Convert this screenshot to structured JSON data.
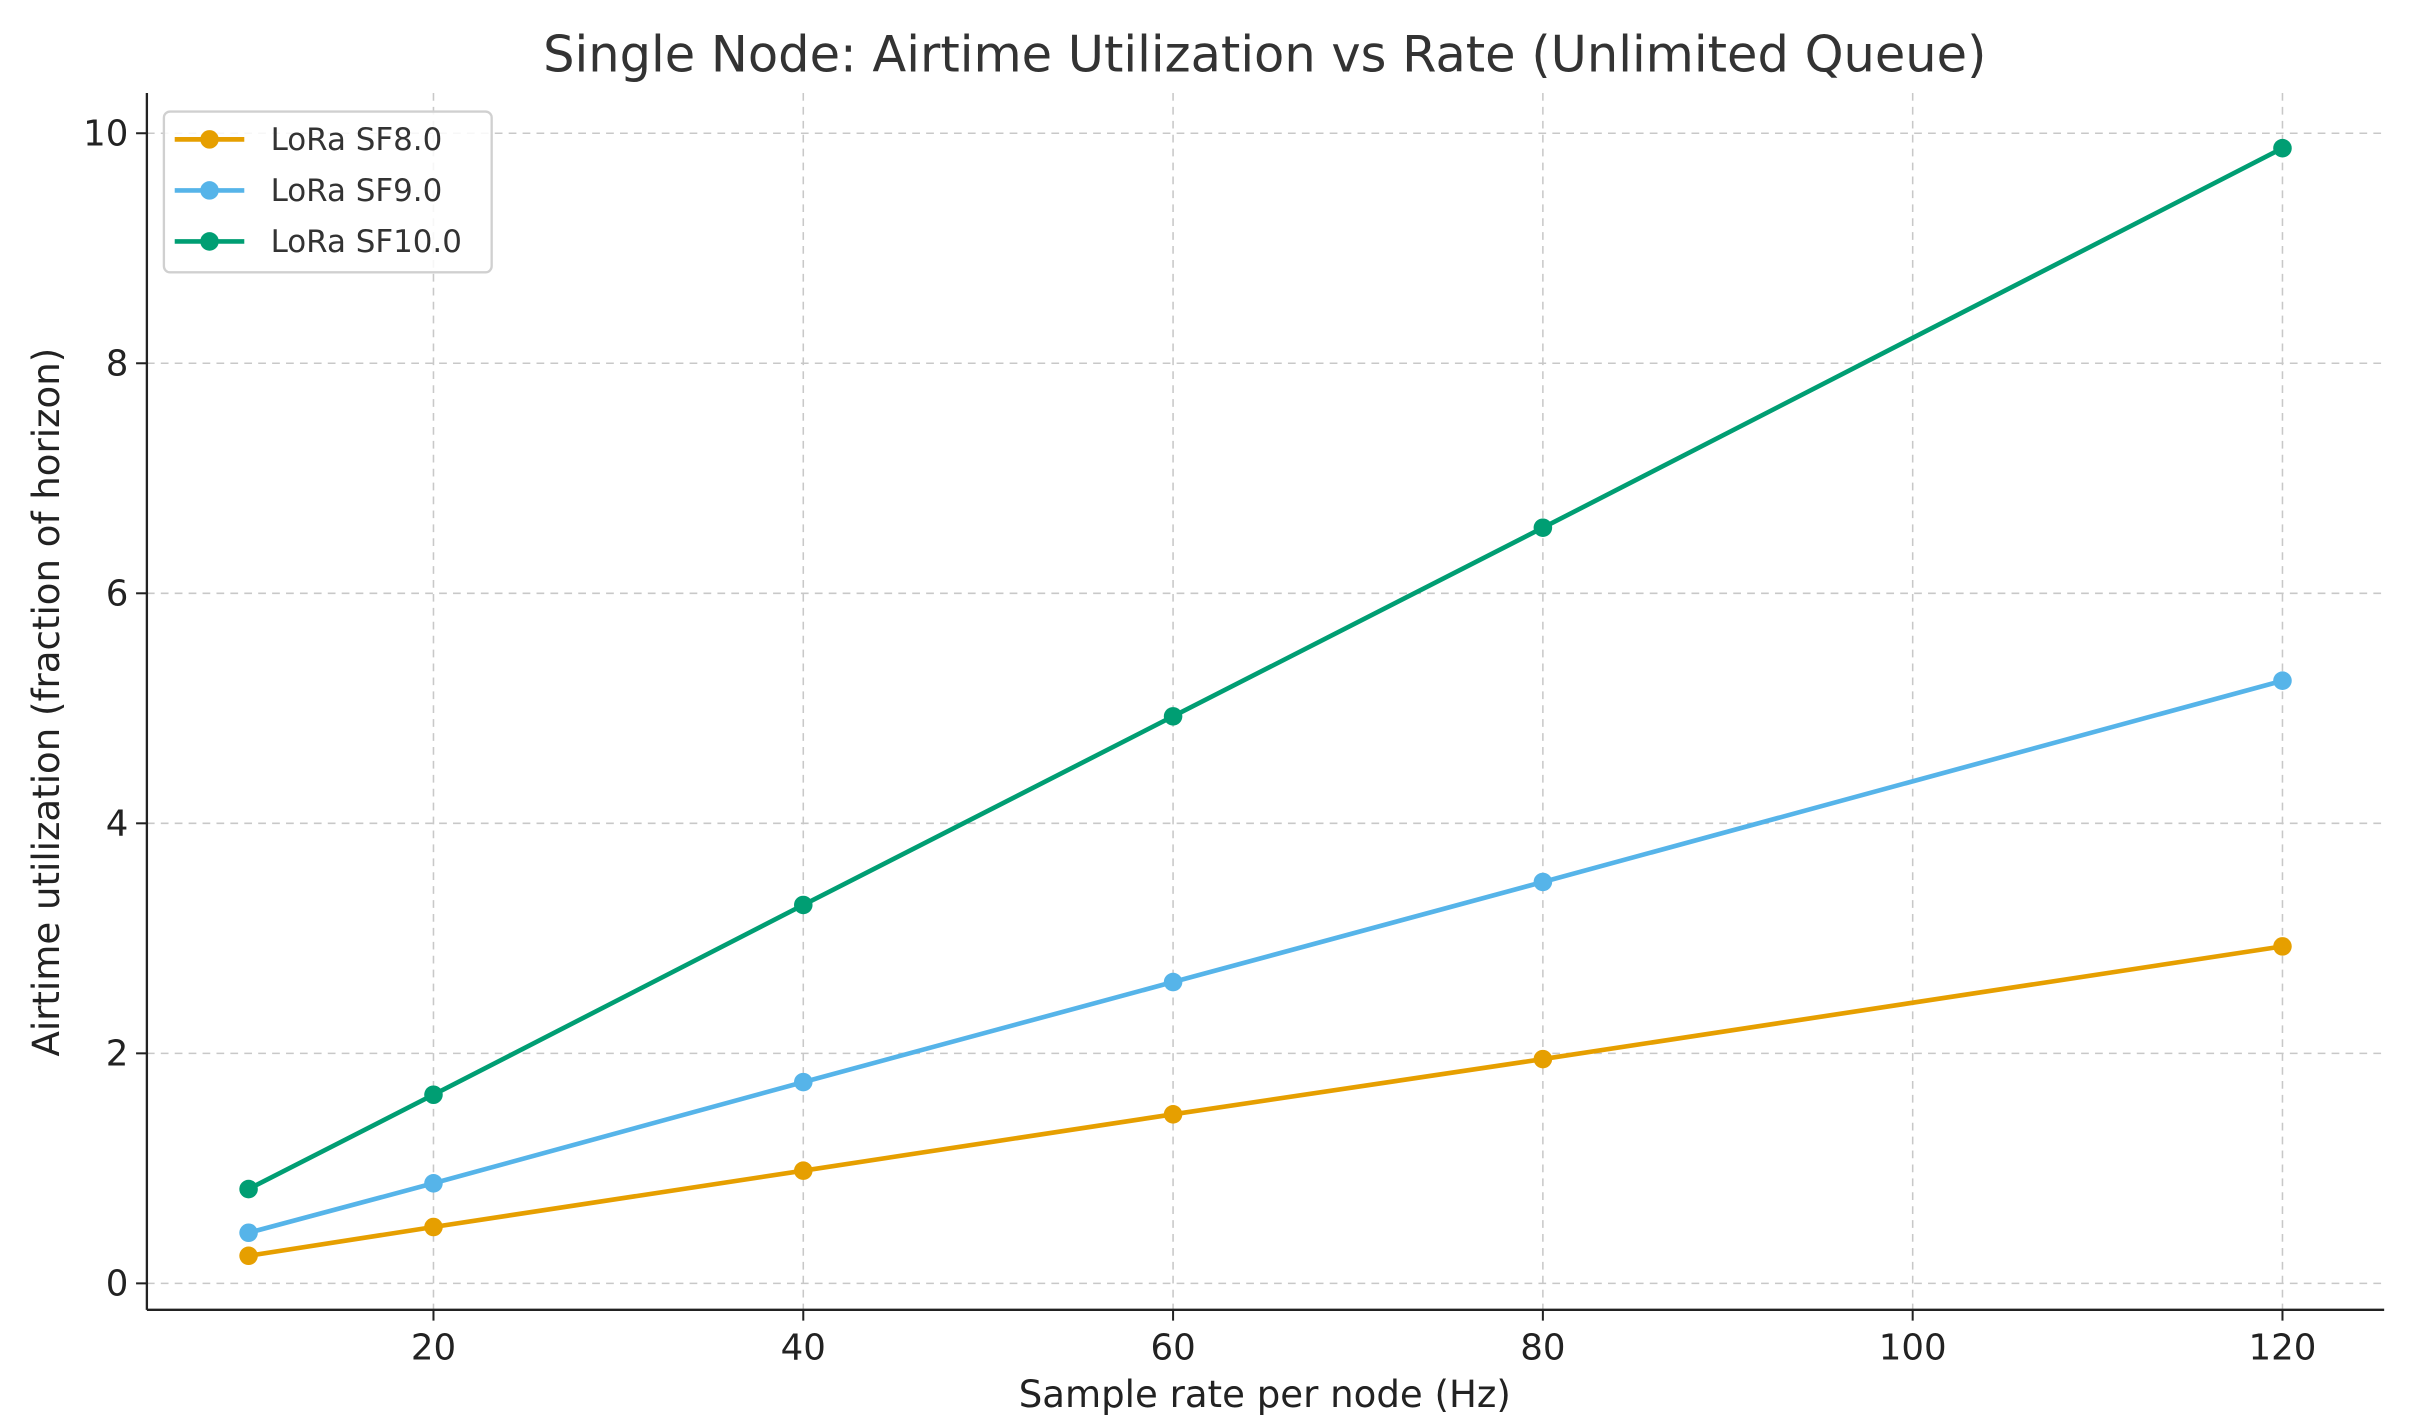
{
  "chart_data": {
    "type": "line",
    "title": "Single Node: Airtime Utilization vs Rate (Unlimited Queue)",
    "xlabel": "Sample rate per node (Hz)",
    "ylabel": "Airtime utilization (fraction of horizon)",
    "x": [
      10,
      20,
      40,
      60,
      80,
      120
    ],
    "xlim": [
      4.5,
      125.5
    ],
    "ylim": [
      -0.23,
      10.35
    ],
    "xticks": [
      20,
      40,
      60,
      80,
      100,
      120
    ],
    "yticks": [
      0,
      2,
      4,
      6,
      8,
      10
    ],
    "grid": true,
    "legend_position": "top-left",
    "series": [
      {
        "name": "LoRa SF8.0",
        "color": "#E69F00",
        "values": [
          0.24,
          0.49,
          0.98,
          1.47,
          1.95,
          2.93
        ]
      },
      {
        "name": "LoRa SF9.0",
        "color": "#56B4E9",
        "values": [
          0.44,
          0.87,
          1.75,
          2.62,
          3.49,
          5.24
        ]
      },
      {
        "name": "LoRa SF10.0",
        "color": "#009E73",
        "values": [
          0.82,
          1.64,
          3.29,
          4.93,
          6.57,
          9.87
        ]
      }
    ]
  }
}
